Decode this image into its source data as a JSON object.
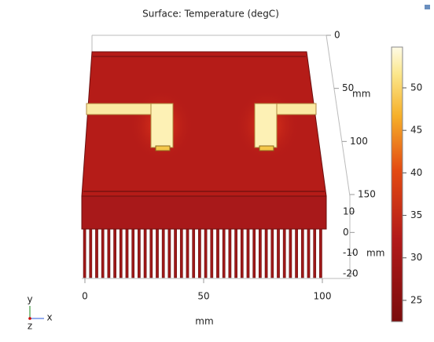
{
  "chart_data": {
    "type": "surface3d",
    "title": "Surface: Temperature (degC)",
    "colorbar": {
      "clim": [
        22.5,
        54.8
      ],
      "ticks": [
        25,
        30,
        35,
        40,
        45,
        50
      ]
    },
    "x_axis": {
      "label": "mm",
      "lim": [
        0,
        100
      ],
      "ticks": [
        0,
        50,
        100
      ]
    },
    "y_axis": {
      "label": "mm",
      "lim": [
        0,
        150
      ],
      "ticks": [
        0,
        50,
        100,
        150
      ]
    },
    "z_axis": {
      "label": "mm",
      "lim": [
        10,
        -20
      ],
      "ticks": [
        10,
        0,
        -10,
        -20
      ]
    },
    "triad": {
      "x": "x",
      "y": "y",
      "z": "z"
    }
  }
}
